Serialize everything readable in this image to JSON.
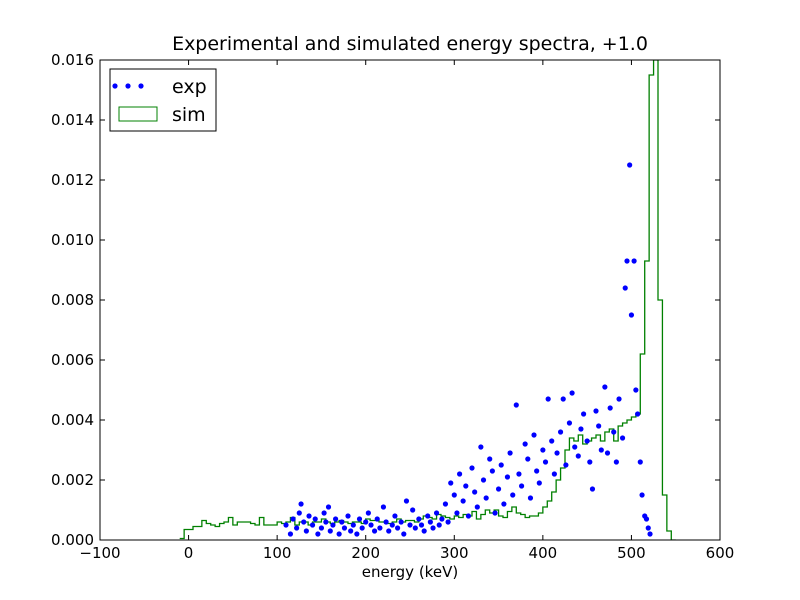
{
  "chart_data": {
    "type": "scatter",
    "title": "Experimental and simulated energy spectra, +1.0",
    "xlabel": "energy (keV)",
    "ylabel": "",
    "xlim": [
      -100,
      600
    ],
    "ylim": [
      0,
      0.016
    ],
    "x_ticks": [
      "−100",
      "0",
      "100",
      "200",
      "300",
      "400",
      "500",
      "600"
    ],
    "y_ticks": [
      "0.000",
      "0.002",
      "0.004",
      "0.006",
      "0.008",
      "0.010",
      "0.012",
      "0.014",
      "0.016"
    ],
    "legend": {
      "position": "upper-left",
      "entries": [
        "exp",
        "sim"
      ]
    },
    "colors": {
      "exp": "#0000ff",
      "sim": "#008000",
      "axes": "#000000"
    },
    "series": [
      {
        "name": "exp",
        "style": "points",
        "points": [
          [
            110,
            0.0005
          ],
          [
            115,
            0.0002
          ],
          [
            118,
            0.0007
          ],
          [
            122,
            0.0004
          ],
          [
            125,
            0.0009
          ],
          [
            127,
            0.0012
          ],
          [
            130,
            0.0006
          ],
          [
            133,
            0.0003
          ],
          [
            136,
            0.0008
          ],
          [
            140,
            0.0005
          ],
          [
            143,
            0.0007
          ],
          [
            146,
            0.0002
          ],
          [
            150,
            0.0004
          ],
          [
            153,
            0.0009
          ],
          [
            155,
            0.0006
          ],
          [
            158,
            0.0011
          ],
          [
            160,
            0.0003
          ],
          [
            163,
            0.0005
          ],
          [
            166,
            0.0007
          ],
          [
            170,
            0.0002
          ],
          [
            173,
            0.0006
          ],
          [
            176,
            0.0004
          ],
          [
            180,
            0.0008
          ],
          [
            183,
            0.0003
          ],
          [
            186,
            0.0005
          ],
          [
            190,
            0.0002
          ],
          [
            193,
            0.0007
          ],
          [
            196,
            0.0004
          ],
          [
            200,
            0.0006
          ],
          [
            203,
            0.0009
          ],
          [
            206,
            0.0005
          ],
          [
            210,
            0.0003
          ],
          [
            213,
            0.0007
          ],
          [
            216,
            0.0004
          ],
          [
            220,
            0.0011
          ],
          [
            223,
            0.0006
          ],
          [
            226,
            0.0003
          ],
          [
            230,
            0.0005
          ],
          [
            233,
            0.0008
          ],
          [
            236,
            0.0004
          ],
          [
            240,
            0.0006
          ],
          [
            243,
            0.0002
          ],
          [
            246,
            0.0013
          ],
          [
            250,
            0.0005
          ],
          [
            253,
            0.001
          ],
          [
            256,
            0.0004
          ],
          [
            260,
            0.0007
          ],
          [
            263,
            0.0005
          ],
          [
            266,
            0.0003
          ],
          [
            270,
            0.0008
          ],
          [
            273,
            0.0006
          ],
          [
            276,
            0.0004
          ],
          [
            280,
            0.0009
          ],
          [
            283,
            0.0005
          ],
          [
            286,
            0.0007
          ],
          [
            290,
            0.0012
          ],
          [
            293,
            0.0006
          ],
          [
            296,
            0.0019
          ],
          [
            300,
            0.0015
          ],
          [
            303,
            0.0009
          ],
          [
            306,
            0.0022
          ],
          [
            310,
            0.0013
          ],
          [
            313,
            0.0018
          ],
          [
            316,
            0.0008
          ],
          [
            320,
            0.0024
          ],
          [
            323,
            0.0016
          ],
          [
            326,
            0.0011
          ],
          [
            330,
            0.0031
          ],
          [
            333,
            0.002
          ],
          [
            336,
            0.0014
          ],
          [
            340,
            0.0027
          ],
          [
            343,
            0.0023
          ],
          [
            346,
            0.0009
          ],
          [
            350,
            0.0017
          ],
          [
            353,
            0.0025
          ],
          [
            356,
            0.0012
          ],
          [
            360,
            0.0021
          ],
          [
            363,
            0.0029
          ],
          [
            366,
            0.0015
          ],
          [
            370,
            0.0045
          ],
          [
            373,
            0.0022
          ],
          [
            376,
            0.0018
          ],
          [
            380,
            0.0032
          ],
          [
            383,
            0.0027
          ],
          [
            386,
            0.0014
          ],
          [
            390,
            0.0035
          ],
          [
            393,
            0.0023
          ],
          [
            396,
            0.0019
          ],
          [
            400,
            0.003
          ],
          [
            403,
            0.0026
          ],
          [
            406,
            0.0047
          ],
          [
            410,
            0.0033
          ],
          [
            413,
            0.0022
          ],
          [
            416,
            0.0029
          ],
          [
            420,
            0.0036
          ],
          [
            423,
            0.0047
          ],
          [
            426,
            0.0025
          ],
          [
            430,
            0.0039
          ],
          [
            433,
            0.0049
          ],
          [
            436,
            0.0031
          ],
          [
            440,
            0.0028
          ],
          [
            443,
            0.0037
          ],
          [
            446,
            0.0042
          ],
          [
            450,
            0.0033
          ],
          [
            453,
            0.0026
          ],
          [
            456,
            0.0017
          ],
          [
            460,
            0.0043
          ],
          [
            463,
            0.0038
          ],
          [
            466,
            0.003
          ],
          [
            470,
            0.0051
          ],
          [
            473,
            0.0029
          ],
          [
            476,
            0.0044
          ],
          [
            480,
            0.0036
          ],
          [
            483,
            0.0026
          ],
          [
            486,
            0.0047
          ],
          [
            490,
            0.0034
          ],
          [
            493,
            0.0084
          ],
          [
            495,
            0.0093
          ],
          [
            498,
            0.0125
          ],
          [
            500,
            0.0075
          ],
          [
            503,
            0.0093
          ],
          [
            505,
            0.005
          ],
          [
            507,
            0.0042
          ],
          [
            510,
            0.0026
          ],
          [
            512,
            0.0015
          ],
          [
            515,
            0.0008
          ],
          [
            517,
            0.0007
          ],
          [
            519,
            0.0004
          ],
          [
            521,
            0.0002
          ]
        ]
      },
      {
        "name": "sim",
        "style": "step",
        "bin_width": 5,
        "bin_start": -10,
        "values": [
          5e-05,
          0.00035,
          0.00035,
          0.00045,
          0.00045,
          0.00065,
          0.00055,
          0.0005,
          0.00045,
          0.00055,
          0.0006,
          0.00075,
          0.0005,
          0.0006,
          0.0006,
          0.0006,
          0.00055,
          0.0005,
          0.00075,
          0.0005,
          0.0005,
          0.0005,
          0.0006,
          0.00055,
          0.0006,
          0.00075,
          0.0005,
          0.0006,
          0.0006,
          0.0005,
          0.0006,
          0.0006,
          0.0007,
          0.0006,
          0.00055,
          0.0006,
          0.00065,
          0.0006,
          0.00055,
          0.0006,
          0.0006,
          0.00055,
          0.0007,
          0.00065,
          0.00065,
          0.0006,
          0.0006,
          0.00055,
          0.0006,
          0.0007,
          0.0006,
          0.00065,
          0.00065,
          0.0006,
          0.0007,
          0.0008,
          0.00075,
          0.0007,
          0.00085,
          0.0008,
          0.00075,
          0.0007,
          0.0008,
          0.00075,
          0.00085,
          0.0008,
          0.00095,
          0.0007,
          0.00085,
          0.001,
          0.0009,
          0.001,
          0.0008,
          0.00075,
          0.00095,
          0.0011,
          0.0009,
          0.00085,
          0.00075,
          0.0008,
          0.0008,
          0.0009,
          0.0011,
          0.0013,
          0.0016,
          0.002,
          0.0024,
          0.003,
          0.0034,
          0.0033,
          0.0035,
          0.0032,
          0.0033,
          0.0034,
          0.0035,
          0.0033,
          0.0036,
          0.0037,
          0.0033,
          0.0038,
          0.0039,
          0.004,
          0.0041,
          0.0042,
          0.0062,
          0.0093,
          0.0155,
          0.016,
          0.008,
          0.0015,
          0.0003,
          0.0
        ]
      }
    ]
  }
}
